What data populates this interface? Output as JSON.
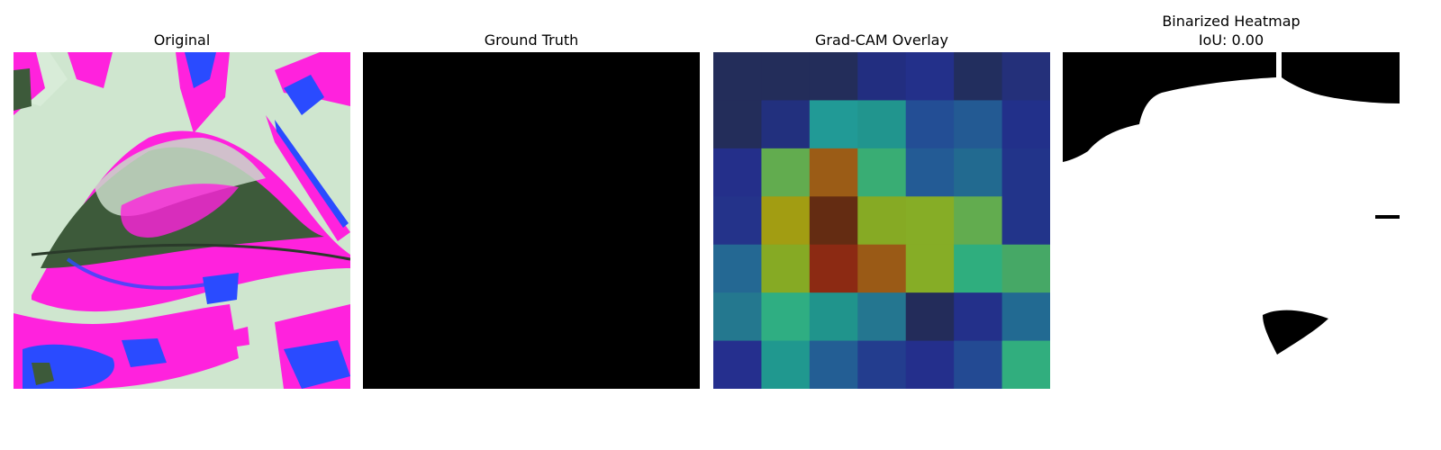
{
  "panels": [
    {
      "title": "Original"
    },
    {
      "title": "Ground Truth"
    },
    {
      "title": "Grad-CAM Overlay"
    },
    {
      "title": "Binarized Heatmap",
      "subtitle": "IoU: 0.00"
    }
  ],
  "colors": {
    "magenta": "#ff22dd",
    "leaf_dark": "#3d5a3a",
    "blue": "#2a4bff",
    "pale_green": "#cfe6cf",
    "mask_black": "#000000",
    "mask_white": "#ffffff"
  },
  "gradcam_grid": {
    "rows": 7,
    "cols": 7,
    "cells": [
      [
        "#232d5a",
        "#232d5a",
        "#232d5a",
        "#222e80",
        "#23308a",
        "#222e5e",
        "#24307a"
      ],
      [
        "#232d5a",
        "#22307e",
        "#219a96",
        "#21958e",
        "#234e95",
        "#235a93",
        "#22308a"
      ],
      [
        "#242f8a",
        "#62ac4f",
        "#9b5c16",
        "#39ad74",
        "#235b95",
        "#226a90",
        "#22348a"
      ],
      [
        "#24338a",
        "#a29d12",
        "#642c12",
        "#86aa24",
        "#86ad26",
        "#62ac4f",
        "#22348a"
      ],
      [
        "#246893",
        "#86aa24",
        "#8c2a13",
        "#9a5a16",
        "#86ad26",
        "#2fae7e",
        "#46a866"
      ],
      [
        "#24788f",
        "#2fae82",
        "#20948c",
        "#247690",
        "#232c5a",
        "#23308a",
        "#226a92"
      ],
      [
        "#252f8e",
        "#20988f",
        "#235e94",
        "#233d8e",
        "#242f8c",
        "#234a93",
        "#31ae7e"
      ]
    ]
  }
}
